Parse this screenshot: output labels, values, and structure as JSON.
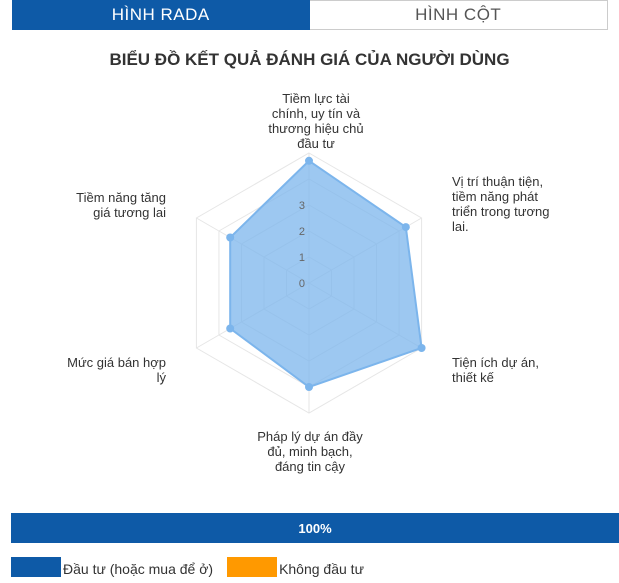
{
  "tabs": [
    {
      "label": "HÌNH RADA",
      "active": true
    },
    {
      "label": "HÌNH CỘT",
      "active": false
    }
  ],
  "colors": {
    "accent": "#0e5aa7",
    "series_fill": "#7cb5ec",
    "series_stroke": "#7cb5ec",
    "grid": "#e6e6e6",
    "not_invest": "#ff9900"
  },
  "chart_data": {
    "type": "radar",
    "title": "BIỂU ĐỒ KẾT QUẢ ĐÁNH GIÁ CỦA NGƯỜI DÙNG",
    "categories": [
      [
        "Tiềm lực tài",
        "chính, uy tín và",
        "thương hiệu chủ",
        "đầu tư"
      ],
      [
        "Vị trí thuận tiện,",
        "tiềm năng phát",
        "triển trong tương",
        "lai."
      ],
      [
        "Tiện ích dự án,",
        "thiết kế"
      ],
      [
        "Pháp lý dự án đầy",
        "đủ, minh bạch,",
        "đáng tin cậy"
      ],
      [
        "Mức giá bán hợp",
        "lý"
      ],
      [
        "Tiềm năng tăng",
        "giá tương lai"
      ]
    ],
    "series": [
      {
        "name": "Đầu tư (hoặc mua để ở)",
        "values": [
          4.7,
          4.3,
          5.0,
          4.0,
          3.5,
          3.5
        ]
      }
    ],
    "yticks": [
      0,
      1,
      2,
      3
    ],
    "ylim": [
      0,
      5
    ],
    "grid": true
  },
  "progress": {
    "value": 1.0,
    "label": "100%"
  },
  "legend": [
    {
      "label": "Đầu tư (hoặc mua để ở)",
      "color": "#0e5aa7"
    },
    {
      "label": "Không đầu tư",
      "color": "#ff9900"
    }
  ]
}
